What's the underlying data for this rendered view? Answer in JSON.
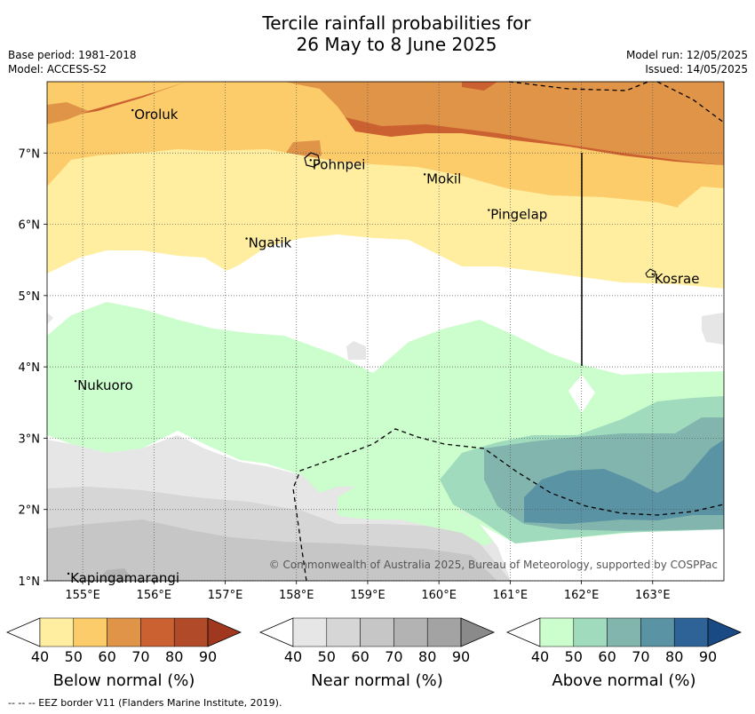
{
  "title": {
    "line1": "Tercile rainfall probabilities for",
    "line2": "26 May to 8 June 2025"
  },
  "meta": {
    "base_period": "Base period: 1981-2018",
    "model": "Model: ACCESS-S2",
    "model_run": "Model run: 12/05/2025",
    "issued": "Issued: 14/05/2025"
  },
  "map": {
    "lon_ticks": [
      "155°E",
      "156°E",
      "157°E",
      "158°E",
      "159°E",
      "160°E",
      "161°E",
      "162°E",
      "163°E"
    ],
    "lat_ticks": [
      "7°N",
      "6°N",
      "5°N",
      "4°N",
      "3°N",
      "2°N",
      "1°N"
    ],
    "places": [
      {
        "name": "Oroluk",
        "lon": 155.7,
        "lat": 7.6
      },
      {
        "name": "Pohnpei",
        "lon": 158.2,
        "lat": 6.9
      },
      {
        "name": "Mokil",
        "lon": 159.8,
        "lat": 6.7
      },
      {
        "name": "Pingelap",
        "lon": 160.7,
        "lat": 6.2
      },
      {
        "name": "Ngatik",
        "lon": 157.3,
        "lat": 5.8
      },
      {
        "name": "Kosrae",
        "lon": 163.0,
        "lat": 5.3
      },
      {
        "name": "Nukuoro",
        "lon": 154.9,
        "lat": 3.8
      },
      {
        "name": "Kapingamarangi",
        "lon": 154.8,
        "lat": 1.1
      }
    ],
    "copyright": "© Commonwealth of Australia 2025, Bureau of Meteorology, supported by COSPPac"
  },
  "legends": [
    {
      "label": "Below normal (%)",
      "ticks": [
        "40",
        "50",
        "60",
        "70",
        "80",
        "90"
      ],
      "colors": [
        "#ffeea0",
        "#fdcc6a",
        "#e09448",
        "#cb6130",
        "#b14a28",
        "#a03820"
      ]
    },
    {
      "label": "Near normal (%)",
      "ticks": [
        "40",
        "50",
        "60",
        "70",
        "80",
        "90"
      ],
      "colors": [
        "#e6e6e6",
        "#d6d6d6",
        "#c6c6c6",
        "#b3b3b3",
        "#a3a3a3",
        "#8a8a8a"
      ]
    },
    {
      "label": "Above normal (%)",
      "ticks": [
        "40",
        "50",
        "60",
        "70",
        "80",
        "90"
      ],
      "colors": [
        "#ccfdcc",
        "#a1dbbd",
        "#82b5ae",
        "#5a93a4",
        "#2e6397",
        "#1a4a84"
      ]
    }
  ],
  "footer": "--  --  -- EEZ border V11 (Flanders Marine Institute, 2019)."
}
